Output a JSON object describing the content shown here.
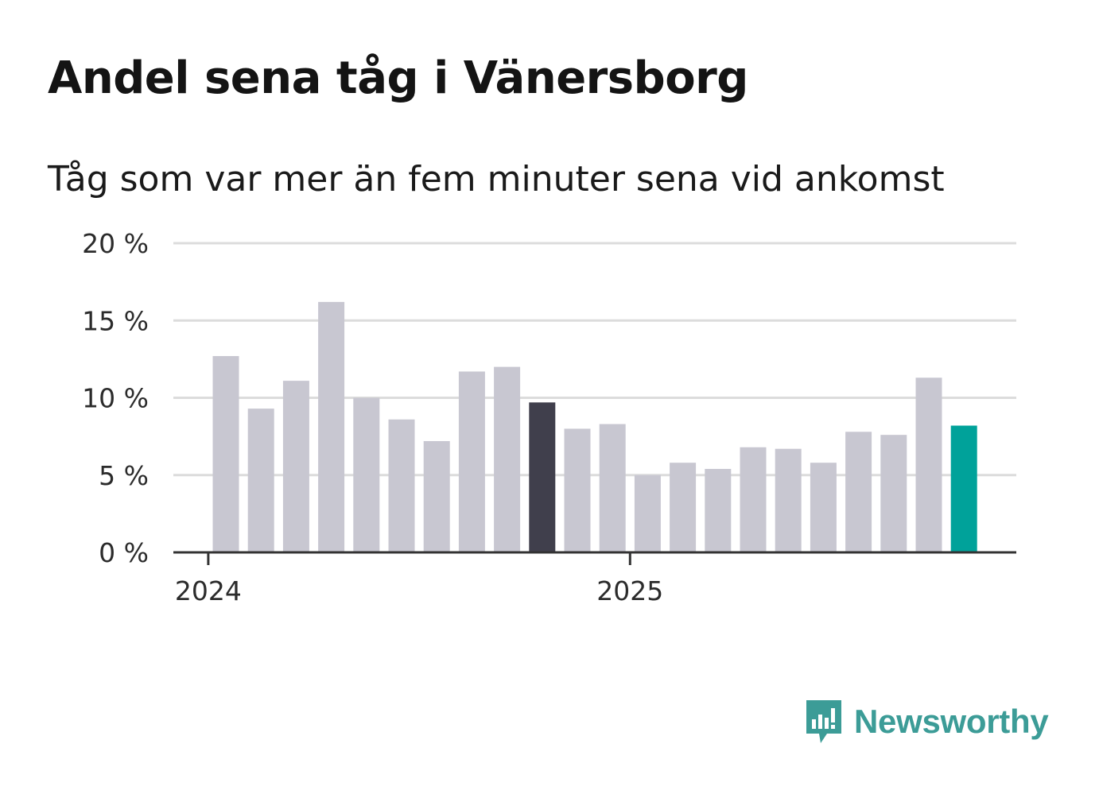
{
  "title": "Andel sena tåg i Vänersborg",
  "subtitle": "Tåg som var mer än fem minuter sena vid ankomst",
  "brand": {
    "name": "Newsworthy",
    "icon": "newsworthy-logo-icon",
    "color": "#3c9c97"
  },
  "chart_data": {
    "type": "bar",
    "x": [
      "2024-01",
      "2024-02",
      "2024-03",
      "2024-04",
      "2024-05",
      "2024-06",
      "2024-07",
      "2024-08",
      "2024-09",
      "2024-10",
      "2024-11",
      "2024-12",
      "2025-01",
      "2025-02",
      "2025-03",
      "2025-04",
      "2025-05",
      "2025-06",
      "2025-07",
      "2025-08",
      "2025-09",
      "2025-10"
    ],
    "values": [
      12.7,
      9.3,
      11.1,
      16.2,
      10.0,
      8.6,
      7.2,
      11.7,
      12.0,
      9.7,
      8.0,
      8.3,
      5.0,
      5.8,
      5.4,
      6.8,
      6.7,
      5.8,
      7.8,
      7.6,
      11.3,
      8.2
    ],
    "bar_colors": [
      "#c8c7d1",
      "#c8c7d1",
      "#c8c7d1",
      "#c8c7d1",
      "#c8c7d1",
      "#c8c7d1",
      "#c8c7d1",
      "#c8c7d1",
      "#c8c7d1",
      "#403f4c",
      "#c8c7d1",
      "#c8c7d1",
      "#c8c7d1",
      "#c8c7d1",
      "#c8c7d1",
      "#c8c7d1",
      "#c8c7d1",
      "#c8c7d1",
      "#c8c7d1",
      "#c8c7d1",
      "#c8c7d1",
      "#00a29a"
    ],
    "ylim": [
      0,
      20
    ],
    "yticks": [
      0,
      5,
      10,
      15,
      20
    ],
    "ytick_labels": [
      "0 %",
      "5 %",
      "10 %",
      "15 %",
      "20 %"
    ],
    "xticks": [
      {
        "label": "2024",
        "x": "2024-01"
      },
      {
        "label": "2025",
        "x": "2025-01"
      }
    ],
    "grid": true,
    "gridline_color": "#dcdcdc",
    "axis_color": "#333333"
  }
}
